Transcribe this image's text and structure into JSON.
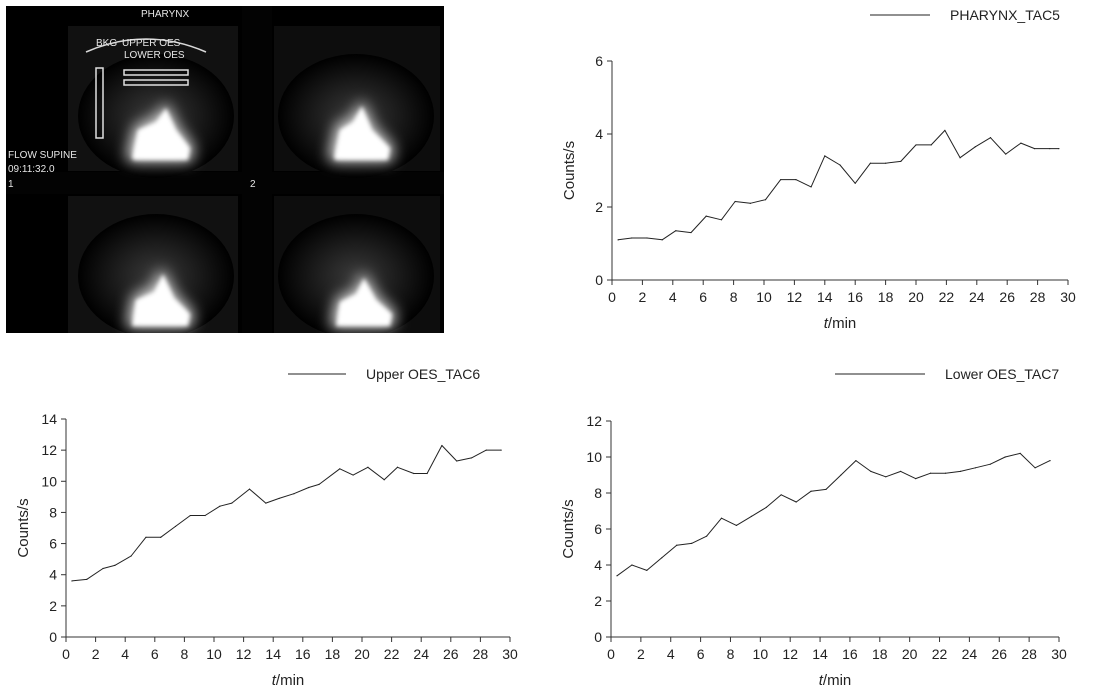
{
  "scan": {
    "title": "PHARYNX",
    "roi_labels": [
      "BKG",
      "UPPER OES",
      "LOWER OES"
    ],
    "view_label": "FLOW SUPINE",
    "timestamp": "09:11:32.0",
    "frame_numbers": [
      "1",
      "2"
    ]
  },
  "chart_data": [
    {
      "type": "line",
      "title": "",
      "legend": "PHARYNX_TAC5",
      "legend_position": "top-right",
      "xlabel": "t/min",
      "ylabel": "Counts/s",
      "xlim": [
        0,
        30
      ],
      "ylim": [
        0,
        6
      ],
      "xticks": [
        0,
        2,
        4,
        6,
        8,
        10,
        12,
        14,
        16,
        18,
        20,
        22,
        24,
        26,
        28,
        30
      ],
      "yticks": [
        0,
        2,
        4,
        6
      ],
      "grid": false,
      "series": [
        {
          "name": "PHARYNX_TAC5",
          "x": [
            0.4,
            1.3,
            2.3,
            3.3,
            4.2,
            5.2,
            6.2,
            7.2,
            8.1,
            9.1,
            10.1,
            11.1,
            12.1,
            13.1,
            14.0,
            15.0,
            16.0,
            17.0,
            18.0,
            19.0,
            20.0,
            21.0,
            21.9,
            22.9,
            23.9,
            24.9,
            25.9,
            26.9,
            27.8,
            28.8,
            29.4
          ],
          "y": [
            1.1,
            1.15,
            1.15,
            1.1,
            1.35,
            1.3,
            1.75,
            1.65,
            2.15,
            2.1,
            2.2,
            2.75,
            2.75,
            2.55,
            3.4,
            3.15,
            2.65,
            3.2,
            3.2,
            3.25,
            3.7,
            3.7,
            4.1,
            3.35,
            3.65,
            3.9,
            3.45,
            3.75,
            3.6,
            3.6,
            3.6
          ]
        }
      ]
    },
    {
      "type": "line",
      "title": "",
      "legend": "Upper OES_TAC6",
      "legend_position": "top-right",
      "xlabel": "t/min",
      "ylabel": "Counts/s",
      "xlim": [
        0,
        30
      ],
      "ylim": [
        0,
        14
      ],
      "xticks": [
        0,
        2,
        4,
        6,
        8,
        10,
        12,
        14,
        16,
        18,
        20,
        22,
        24,
        26,
        28,
        30
      ],
      "yticks": [
        0,
        2,
        4,
        6,
        8,
        10,
        12,
        14
      ],
      "grid": false,
      "series": [
        {
          "name": "Upper OES_TAC6",
          "x": [
            0.4,
            1.4,
            2.5,
            3.3,
            4.4,
            5.4,
            6.4,
            7.4,
            8.4,
            9.4,
            10.4,
            11.2,
            12.4,
            13.5,
            14.4,
            15.4,
            16.4,
            17.1,
            18.5,
            19.4,
            20.4,
            21.5,
            22.4,
            23.5,
            24.4,
            25.4,
            26.4,
            27.4,
            28.4,
            29.4
          ],
          "y": [
            3.6,
            3.7,
            4.4,
            4.6,
            5.2,
            6.4,
            6.4,
            7.1,
            7.8,
            7.8,
            8.4,
            8.6,
            9.5,
            8.6,
            8.9,
            9.2,
            9.6,
            9.8,
            10.8,
            10.4,
            10.9,
            10.1,
            10.9,
            10.5,
            10.5,
            12.3,
            11.3,
            11.5,
            12.0,
            12.0
          ]
        }
      ]
    },
    {
      "type": "line",
      "title": "",
      "legend": "Lower OES_TAC7",
      "legend_position": "top-right",
      "xlabel": "t/min",
      "ylabel": "Counts/s",
      "xlim": [
        0,
        30
      ],
      "ylim": [
        0,
        12
      ],
      "xticks": [
        0,
        2,
        4,
        6,
        8,
        10,
        12,
        14,
        16,
        18,
        20,
        22,
        24,
        26,
        28,
        30
      ],
      "yticks": [
        0,
        2,
        4,
        6,
        8,
        10,
        12
      ],
      "grid": false,
      "series": [
        {
          "name": "Lower OES_TAC7",
          "x": [
            0.4,
            1.4,
            2.4,
            3.4,
            4.4,
            5.4,
            6.4,
            7.4,
            8.4,
            9.4,
            10.4,
            11.4,
            12.4,
            13.4,
            14.4,
            15.4,
            16.4,
            17.4,
            18.4,
            19.4,
            20.4,
            21.4,
            22.4,
            23.4,
            24.4,
            25.4,
            26.4,
            27.4,
            28.4,
            29.4
          ],
          "y": [
            3.4,
            4.0,
            3.7,
            4.4,
            5.1,
            5.2,
            5.6,
            6.6,
            6.2,
            6.7,
            7.2,
            7.9,
            7.5,
            8.1,
            8.2,
            9.0,
            9.8,
            9.2,
            8.9,
            9.2,
            8.8,
            9.1,
            9.1,
            9.2,
            9.4,
            9.6,
            10.0,
            10.2,
            9.4,
            9.8
          ]
        }
      ]
    }
  ]
}
